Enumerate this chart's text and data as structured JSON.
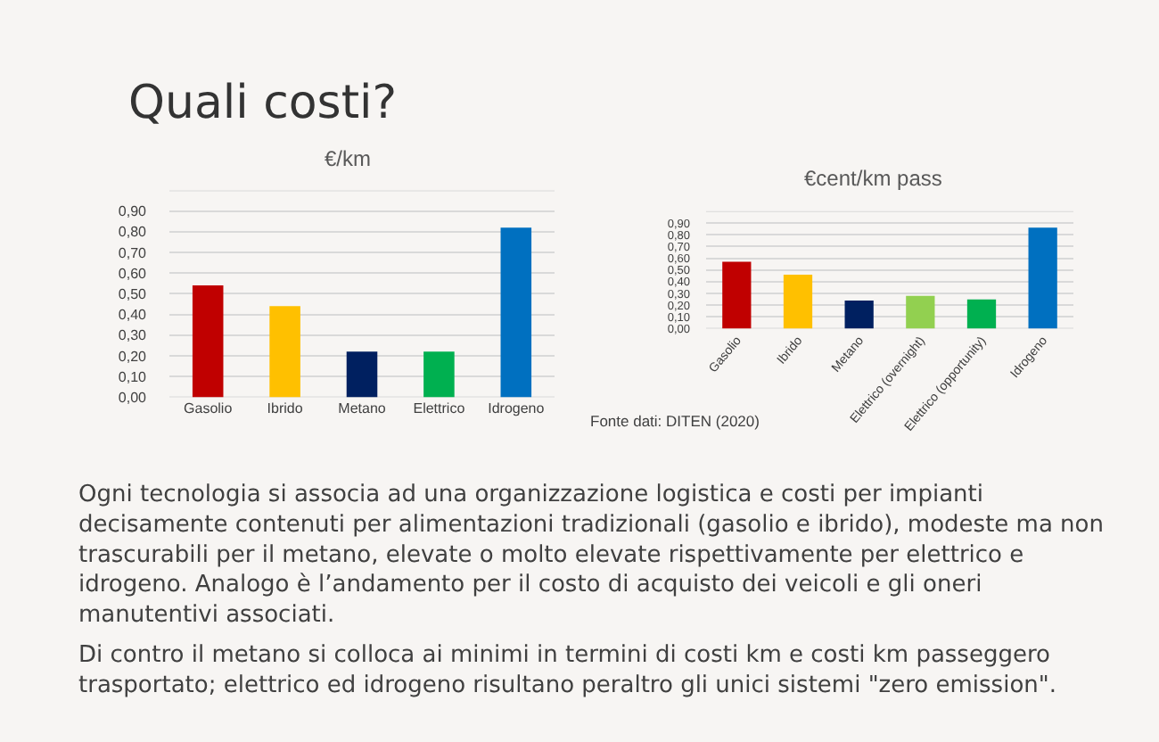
{
  "chart_data": [
    {
      "type": "bar",
      "title": "€/km",
      "categories": [
        "Gasolio",
        "Ibrido",
        "Metano",
        "Elettrico",
        "Idrogeno"
      ],
      "values": [
        0.54,
        0.44,
        0.22,
        0.22,
        0.82
      ],
      "colors": [
        "#c00000",
        "#ffc000",
        "#002060",
        "#00b050",
        "#0070c0"
      ],
      "ylim": [
        0,
        1
      ],
      "yticks": [
        {
          "value": 0,
          "label": "0,00"
        },
        {
          "value": 0.1,
          "label": "0,10"
        },
        {
          "value": 0.2,
          "label": "0,20"
        },
        {
          "value": 0.3,
          "label": "0,30"
        },
        {
          "value": 0.4,
          "label": "0,40"
        },
        {
          "value": 0.5,
          "label": "0,50"
        },
        {
          "value": 0.6,
          "label": "0,60"
        },
        {
          "value": 0.7,
          "label": "0,70"
        },
        {
          "value": 0.8,
          "label": "0,80"
        },
        {
          "value": 0.9,
          "label": "0,90"
        },
        {
          "value": 1,
          "label": null
        }
      ],
      "grid": "y"
    },
    {
      "type": "bar",
      "title": "€cent/km pass",
      "categories": [
        "Gasolio",
        "Ibrido",
        "Metano",
        "Elettrico (overnight)",
        "Elettrico (opportunity)",
        "Idrogeno"
      ],
      "values": [
        0.57,
        0.46,
        0.24,
        0.28,
        0.25,
        0.86
      ],
      "colors": [
        "#c00000",
        "#ffc000",
        "#002060",
        "#92d050",
        "#00b050",
        "#0070c0"
      ],
      "ylim": [
        0,
        1
      ],
      "yticks": [
        {
          "value": 0,
          "label": "0,00"
        },
        {
          "value": 0.1,
          "label": "0,10"
        },
        {
          "value": 0.2,
          "label": "0,20"
        },
        {
          "value": 0.3,
          "label": "0,30"
        },
        {
          "value": 0.4,
          "label": "0,40"
        },
        {
          "value": 0.5,
          "label": "0,50"
        },
        {
          "value": 0.6,
          "label": "0,60"
        },
        {
          "value": 0.7,
          "label": "0,70"
        },
        {
          "value": 0.8,
          "label": "0,80"
        },
        {
          "value": 0.9,
          "label": "0,90"
        },
        {
          "value": 1,
          "label": null
        }
      ],
      "grid": "y",
      "annotations": [
        "Fonte dati: DITEN (2020)"
      ]
    },
    {
      "type": "other",
      "title": "Quali costi?",
      "annotations": [
        "Ogni tecnologia si associa ad una organizzazione logistica e costi per impianti decisamente contenuti per alimentazioni tradizionali (gasolio e ibrido), modeste ma non trascurabili per il metano, elevate o molto elevate rispettivamente per elettrico e idrogeno. Analogo è l’andamento per il costo di acquisto dei veicoli e gli oneri manutentivi associati.",
        "Di contro il metano si colloca ai minimi in termini di costi km e costi km passeggero trasportato; elettrico ed idrogeno risultano peraltro gli unici sistemi \"zero emission\"."
      ]
    }
  ]
}
